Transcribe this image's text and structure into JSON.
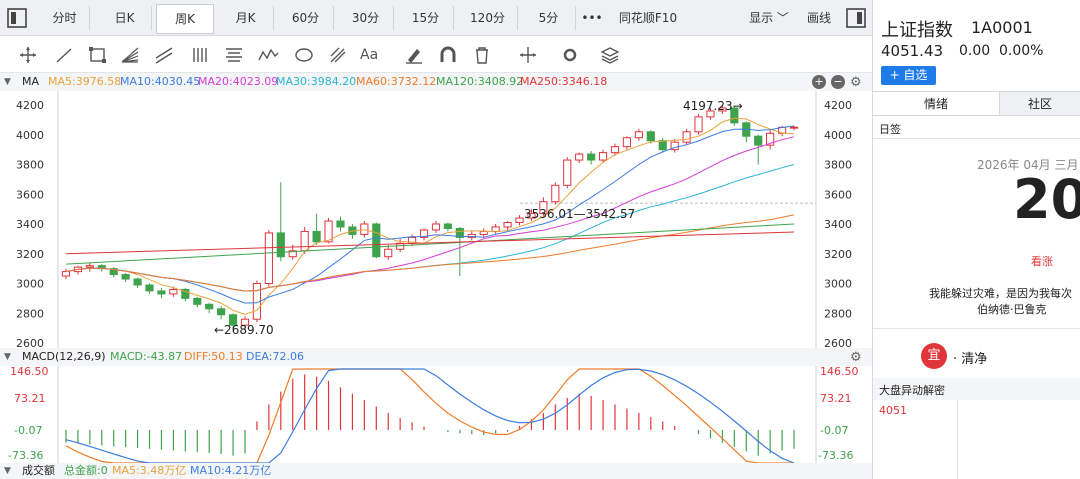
{
  "tabs": [
    "分时",
    "日K",
    "周K",
    "月K",
    "60分",
    "30分",
    "15分",
    "120分",
    "5分",
    "同花顺F10"
  ],
  "active_tab": "周K",
  "more_label": "•••",
  "display_label": "显示",
  "draw_label": "画线",
  "toolbar_icons": [
    "crosshair-icon",
    "line-icon",
    "rect-icon",
    "fan-icon",
    "parallel-lines-icon",
    "fib-icon",
    "wave-icon",
    "cycle-icon",
    "gann-icon",
    "text-icon",
    "brush-icon",
    "magnet-icon",
    "trash-icon",
    "measure-icon",
    "settings-icon",
    "layers-icon"
  ],
  "ma_legend": [
    {
      "text": "MA",
      "color": "#333333"
    },
    {
      "text": "MA5:3976.58",
      "color": "#e8a33d"
    },
    {
      "text": "MA10:4030.45",
      "color": "#3b7de0"
    },
    {
      "text": "MA20:4023.09",
      "color": "#d63bd6"
    },
    {
      "text": "MA30:3984.20",
      "color": "#2ab4d8"
    },
    {
      "text": "MA60:3732.12",
      "color": "#f07c2a"
    },
    {
      "text": "MA120:3408.92",
      "color": "#3fa34d"
    },
    {
      "text": "MA250:3346.18",
      "color": "#e0353a"
    }
  ],
  "price_axis": [
    "4200",
    "4000",
    "3800",
    "3600",
    "3400",
    "3200",
    "3000",
    "2800",
    "2600"
  ],
  "annotations": {
    "high": "4197.23→",
    "low": "←2689.70",
    "range": "3536.01—3542.57"
  },
  "macd_legend": [
    {
      "text": "MACD(12,26,9)",
      "color": "#333333"
    },
    {
      "text": "MACD:-43.87",
      "color": "#3fa34d"
    },
    {
      "text": "DIFF:50.13",
      "color": "#f07c2a"
    },
    {
      "text": "DEA:72.06",
      "color": "#3b7de0"
    }
  ],
  "macd_axis": {
    "left": [
      {
        "v": "146.50",
        "c": "#e0353a"
      },
      {
        "v": "73.21",
        "c": "#e0353a"
      },
      {
        "v": "-0.07",
        "c": "#3fa34d"
      },
      {
        "v": "-73.36",
        "c": "#3fa34d"
      }
    ],
    "right": [
      {
        "v": "146.50",
        "c": "#e0353a"
      },
      {
        "v": "73.21",
        "c": "#e0353a"
      },
      {
        "v": "-0.07",
        "c": "#3fa34d"
      },
      {
        "v": "-73.36",
        "c": "#3fa34d"
      }
    ]
  },
  "volume_legend": [
    {
      "text": "成交额",
      "color": "#333333"
    },
    {
      "text": "总金额:0",
      "color": "#3fa34d"
    },
    {
      "text": "MA5:3.48万亿",
      "color": "#e8a33d"
    },
    {
      "text": "MA10:4.21万亿",
      "color": "#3b7de0"
    }
  ],
  "colors": {
    "up": "#e0353a",
    "down": "#3fa34d",
    "accent": "#1e7be8"
  },
  "stock": {
    "name": "上证指数",
    "code": "1A0001",
    "price": "4051.43",
    "change": "0.00",
    "pct": "0.00%",
    "add_button": "+ 自选"
  },
  "panel_tabs": [
    "情绪",
    "社区"
  ],
  "calendar": {
    "section": "日签",
    "date": "2026年 04月 三月",
    "day": "20",
    "tag": "看涨",
    "quote1": "我能躲过灾难，是因为我每次",
    "quote2": "伯纳德·巴鲁克",
    "yi_label": "宜",
    "yi_text": "· 清净"
  },
  "abnormal": {
    "title": "大盘异动解密",
    "value": "4051"
  },
  "chart_data": {
    "type": "candlestick",
    "ylim": [
      2600,
      4200
    ],
    "x_count": 62,
    "candles": [
      [
        3050,
        3080,
        3030,
        3100
      ],
      [
        3080,
        3110,
        3060,
        3120
      ],
      [
        3110,
        3120,
        3080,
        3140
      ],
      [
        3120,
        3100,
        3080,
        3130
      ],
      [
        3100,
        3060,
        3040,
        3110
      ],
      [
        3060,
        3030,
        3010,
        3070
      ],
      [
        3030,
        2990,
        2970,
        3040
      ],
      [
        2990,
        2950,
        2930,
        3000
      ],
      [
        2950,
        2930,
        2900,
        2970
      ],
      [
        2930,
        2960,
        2910,
        2980
      ],
      [
        2960,
        2900,
        2880,
        2970
      ],
      [
        2900,
        2860,
        2840,
        2910
      ],
      [
        2860,
        2830,
        2800,
        2870
      ],
      [
        2830,
        2790,
        2760,
        2850
      ],
      [
        2790,
        2720,
        2690,
        2800
      ],
      [
        2720,
        2760,
        2690,
        2780
      ],
      [
        2760,
        3000,
        2740,
        3020
      ],
      [
        3000,
        3340,
        2980,
        3360
      ],
      [
        3340,
        3180,
        3150,
        3680
      ],
      [
        3180,
        3220,
        3160,
        3260
      ],
      [
        3220,
        3350,
        3200,
        3380
      ],
      [
        3350,
        3280,
        3260,
        3470
      ],
      [
        3280,
        3420,
        3270,
        3440
      ],
      [
        3420,
        3380,
        3350,
        3450
      ],
      [
        3380,
        3330,
        3300,
        3400
      ],
      [
        3330,
        3400,
        3310,
        3420
      ],
      [
        3400,
        3180,
        3170,
        3410
      ],
      [
        3180,
        3230,
        3160,
        3260
      ],
      [
        3230,
        3270,
        3210,
        3300
      ],
      [
        3270,
        3310,
        3250,
        3330
      ],
      [
        3310,
        3360,
        3290,
        3370
      ],
      [
        3360,
        3400,
        3340,
        3420
      ],
      [
        3400,
        3370,
        3350,
        3410
      ],
      [
        3370,
        3310,
        3050,
        3380
      ],
      [
        3310,
        3330,
        3290,
        3350
      ],
      [
        3330,
        3350,
        3310,
        3370
      ],
      [
        3350,
        3380,
        3330,
        3400
      ],
      [
        3380,
        3410,
        3360,
        3420
      ],
      [
        3410,
        3440,
        3390,
        3460
      ],
      [
        3440,
        3470,
        3420,
        3500
      ],
      [
        3470,
        3550,
        3450,
        3580
      ],
      [
        3550,
        3660,
        3530,
        3680
      ],
      [
        3660,
        3830,
        3640,
        3850
      ],
      [
        3830,
        3870,
        3810,
        3880
      ],
      [
        3870,
        3830,
        3800,
        3890
      ],
      [
        3830,
        3880,
        3810,
        3900
      ],
      [
        3880,
        3920,
        3860,
        3940
      ],
      [
        3920,
        3980,
        3900,
        3990
      ],
      [
        3980,
        4020,
        3960,
        4040
      ],
      [
        4020,
        3960,
        3940,
        4030
      ],
      [
        3960,
        3900,
        3880,
        3980
      ],
      [
        3900,
        3950,
        3880,
        3970
      ],
      [
        3950,
        4020,
        3930,
        4040
      ],
      [
        4020,
        4120,
        4000,
        4140
      ],
      [
        4120,
        4160,
        4100,
        4180
      ],
      [
        4160,
        4180,
        4140,
        4197
      ],
      [
        4180,
        4080,
        4060,
        4190
      ],
      [
        4080,
        3990,
        3950,
        4090
      ],
      [
        3990,
        3930,
        3800,
        4000
      ],
      [
        3930,
        4010,
        3900,
        4030
      ],
      [
        4010,
        4050,
        3990,
        4060
      ],
      [
        4050,
        4051,
        4030,
        4060
      ]
    ],
    "macd_bars": [
      -30,
      -32,
      -34,
      -36,
      -38,
      -40,
      -42,
      -44,
      -46,
      -48,
      -50,
      -52,
      -54,
      -56,
      -60,
      -55,
      20,
      60,
      90,
      120,
      130,
      125,
      115,
      100,
      85,
      70,
      55,
      40,
      28,
      18,
      8,
      0,
      -5,
      -8,
      -10,
      -12,
      -8,
      -4,
      10,
      25,
      40,
      60,
      75,
      85,
      80,
      70,
      60,
      50,
      40,
      30,
      20,
      10,
      0,
      -10,
      -20,
      -30,
      -40,
      -50,
      -60,
      -55,
      -48,
      -44
    ]
  }
}
